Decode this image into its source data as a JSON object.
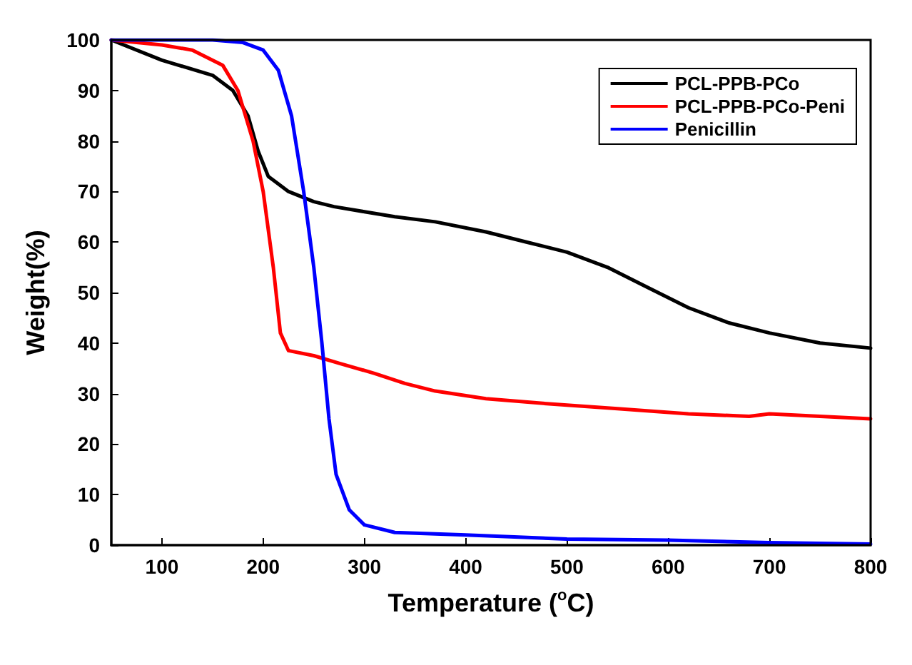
{
  "chart_data": {
    "type": "line",
    "xlabel": "Temperature ($^{o}$C)",
    "ylabel": "Weight(%)",
    "xlim": [
      50,
      800
    ],
    "xticks": [
      100,
      200,
      300,
      400,
      500,
      600,
      700,
      800
    ],
    "ylim": [
      0,
      100
    ],
    "yticks": [
      0,
      10,
      20,
      30,
      40,
      50,
      60,
      70,
      80,
      90,
      100
    ],
    "grid": false,
    "legend": "top right",
    "marker": "none",
    "line_style": "solid",
    "series": [
      {
        "name": "PCL-PPB-PCo",
        "color": "#000000",
        "x": [
          50,
          100,
          150,
          170,
          185,
          195,
          205,
          225,
          250,
          270,
          300,
          330,
          370,
          420,
          460,
          500,
          540,
          580,
          620,
          660,
          700,
          750,
          800
        ],
        "values": [
          100,
          96,
          93,
          90,
          85,
          78,
          73,
          70,
          68,
          67,
          66,
          65,
          64,
          62,
          60,
          58,
          55,
          51,
          47,
          44,
          42,
          40,
          39
        ]
      },
      {
        "name": "PCL-PPB-PCo-Peni",
        "color": "#ff0000",
        "x": [
          50,
          100,
          130,
          160,
          175,
          190,
          200,
          210,
          217,
          225,
          250,
          275,
          310,
          340,
          370,
          420,
          480,
          550,
          620,
          680,
          700,
          750,
          800
        ],
        "values": [
          100,
          99,
          98,
          95,
          90,
          80,
          70,
          55,
          42,
          38.5,
          37.5,
          36,
          34,
          32,
          30.5,
          29,
          28,
          27,
          26,
          25.5,
          26,
          25.5,
          25
        ]
      },
      {
        "name": "Penicillin",
        "color": "#0000ff",
        "x": [
          50,
          150,
          180,
          200,
          215,
          228,
          240,
          250,
          258,
          265,
          272,
          285,
          300,
          330,
          400,
          500,
          600,
          700,
          800
        ],
        "values": [
          100,
          100,
          99.5,
          98,
          94,
          85,
          70,
          55,
          40,
          25,
          14,
          7,
          4,
          2.5,
          2,
          1.2,
          1,
          0.5,
          0.2
        ]
      }
    ]
  }
}
